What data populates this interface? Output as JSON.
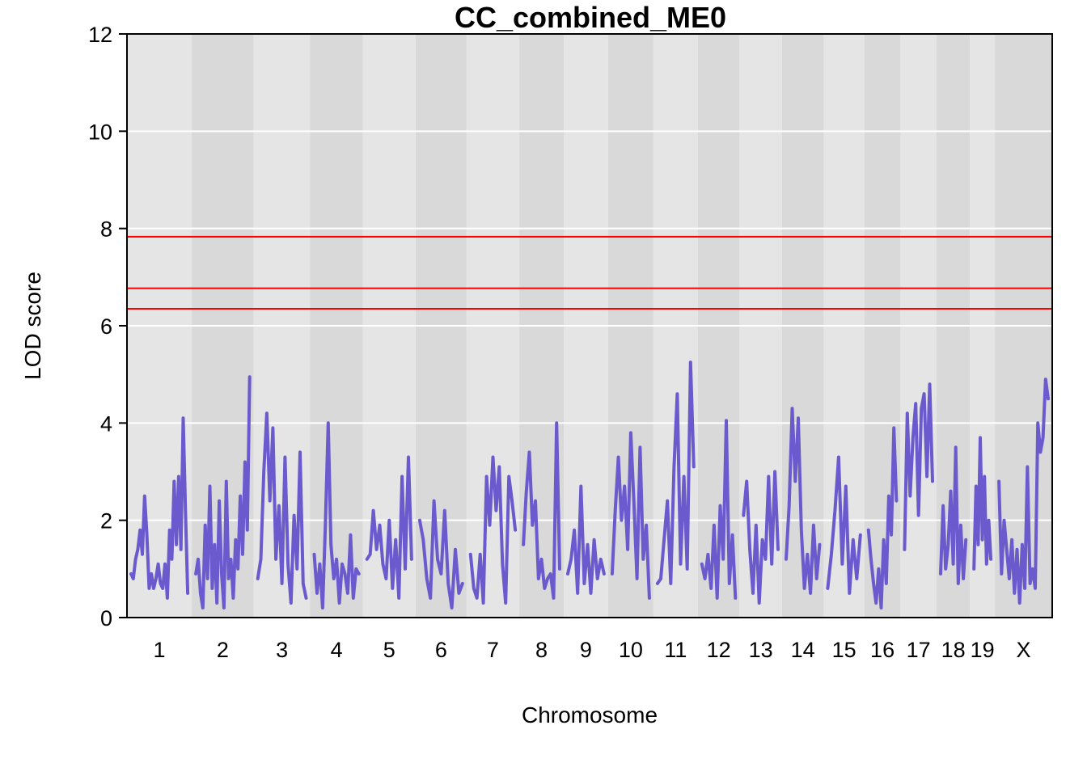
{
  "chart_data": {
    "type": "line",
    "title": "CC_combined_ME0",
    "xlabel": "Chromosome",
    "ylabel": "LOD score",
    "ylim": [
      0,
      12
    ],
    "yticks": [
      0,
      2,
      4,
      6,
      8,
      10,
      12
    ],
    "grid": true,
    "colors": {
      "line": "#6a5acd",
      "threshold": "#ff0000",
      "band_light": "#e5e5e5",
      "band_dark": "#d9d9d9",
      "grid": "#ffffff"
    },
    "thresholds": [
      7.83,
      6.77,
      6.35
    ],
    "chromosomes": [
      {
        "label": "1",
        "start": 0.0,
        "end": 0.07,
        "values": [
          0.9,
          0.8,
          1.2,
          1.4,
          1.8,
          1.3,
          2.5,
          1.7,
          0.6,
          0.9,
          0.6,
          0.8,
          1.1,
          0.7,
          0.6,
          1.1,
          0.4,
          1.8,
          1.2,
          2.8,
          1.5,
          2.9,
          1.4,
          4.1,
          2.2,
          0.5
        ]
      },
      {
        "label": "2",
        "start": 0.07,
        "end": 0.137,
        "values": [
          0.9,
          1.2,
          0.5,
          0.2,
          1.9,
          0.8,
          2.7,
          0.6,
          1.5,
          0.3,
          2.4,
          0.9,
          0.2,
          2.8,
          0.8,
          1.2,
          0.4,
          1.6,
          1.0,
          2.5,
          1.3,
          3.2,
          1.8,
          4.95
        ]
      },
      {
        "label": "3",
        "start": 0.137,
        "end": 0.198,
        "values": [
          0.8,
          1.2,
          3.0,
          4.2,
          2.4,
          3.9,
          1.2,
          2.3,
          0.7,
          3.3,
          1.1,
          0.3,
          2.1,
          1.0,
          3.4,
          0.7,
          0.4
        ]
      },
      {
        "label": "4",
        "start": 0.198,
        "end": 0.255,
        "values": [
          1.3,
          0.5,
          1.1,
          0.2,
          1.9,
          4.0,
          1.5,
          0.8,
          1.2,
          0.3,
          1.1,
          0.9,
          0.5,
          1.7,
          0.4,
          1.0,
          0.9
        ]
      },
      {
        "label": "5",
        "start": 0.255,
        "end": 0.312,
        "values": [
          1.2,
          1.3,
          2.2,
          1.4,
          1.9,
          1.1,
          0.8,
          2.0,
          0.6,
          1.6,
          0.4,
          2.9,
          1.0,
          3.3,
          1.2
        ]
      },
      {
        "label": "6",
        "start": 0.312,
        "end": 0.367,
        "values": [
          2.0,
          1.6,
          0.8,
          0.4,
          2.4,
          1.2,
          0.9,
          2.2,
          0.7,
          0.2,
          1.4,
          0.5,
          0.7
        ]
      },
      {
        "label": "7",
        "start": 0.367,
        "end": 0.424,
        "values": [
          1.3,
          0.6,
          0.4,
          1.3,
          0.3,
          2.9,
          1.9,
          3.3,
          2.2,
          3.1,
          1.1,
          0.3,
          2.9,
          2.4,
          1.8
        ]
      },
      {
        "label": "8",
        "start": 0.424,
        "end": 0.472,
        "values": [
          1.5,
          2.6,
          3.4,
          1.9,
          2.4,
          0.8,
          1.2,
          0.6,
          0.8,
          0.9,
          0.4,
          4.0,
          1.0
        ]
      },
      {
        "label": "9",
        "start": 0.472,
        "end": 0.52,
        "values": [
          0.9,
          1.2,
          1.8,
          0.5,
          2.7,
          0.7,
          1.5,
          0.5,
          1.6,
          0.8,
          1.2,
          0.9
        ]
      },
      {
        "label": "10",
        "start": 0.52,
        "end": 0.569,
        "values": [
          0.9,
          2.2,
          3.3,
          2.0,
          2.7,
          1.4,
          3.8,
          2.4,
          0.8,
          3.5,
          1.2,
          1.9,
          0.4
        ]
      },
      {
        "label": "11",
        "start": 0.569,
        "end": 0.617,
        "values": [
          0.7,
          0.8,
          1.6,
          2.4,
          0.7,
          3.1,
          4.6,
          1.1,
          2.9,
          1.0,
          5.25,
          3.1
        ]
      },
      {
        "label": "12",
        "start": 0.617,
        "end": 0.662,
        "values": [
          1.1,
          0.8,
          1.3,
          0.6,
          1.9,
          0.4,
          2.3,
          1.2,
          4.05,
          0.7,
          1.7,
          0.4
        ]
      },
      {
        "label": "13",
        "start": 0.662,
        "end": 0.708,
        "values": [
          2.1,
          2.8,
          1.4,
          0.5,
          1.9,
          0.3,
          1.6,
          1.2,
          2.9,
          1.1,
          3.0,
          1.4
        ]
      },
      {
        "label": "14",
        "start": 0.708,
        "end": 0.753,
        "values": [
          1.2,
          2.3,
          4.3,
          2.8,
          4.1,
          1.8,
          0.6,
          1.3,
          0.5,
          1.9,
          0.8,
          1.5
        ]
      },
      {
        "label": "15",
        "start": 0.753,
        "end": 0.797,
        "values": [
          0.6,
          1.3,
          2.2,
          3.3,
          1.1,
          2.7,
          0.5,
          1.6,
          0.8,
          1.7
        ]
      },
      {
        "label": "16",
        "start": 0.797,
        "end": 0.836,
        "values": [
          1.8,
          1.2,
          0.7,
          0.3,
          1.0,
          0.2,
          1.6,
          0.7,
          2.5,
          1.7,
          3.9,
          2.4
        ]
      },
      {
        "label": "17",
        "start": 0.836,
        "end": 0.875,
        "values": [
          1.4,
          4.2,
          2.5,
          3.7,
          4.4,
          2.1,
          4.3,
          4.6,
          2.9,
          4.8,
          2.8
        ]
      },
      {
        "label": "18",
        "start": 0.875,
        "end": 0.911,
        "values": [
          0.9,
          2.3,
          1.0,
          1.5,
          2.6,
          1.1,
          3.5,
          0.7,
          1.9,
          0.8,
          1.6
        ]
      },
      {
        "label": "19",
        "start": 0.911,
        "end": 0.938,
        "values": [
          1.0,
          2.7,
          1.5,
          3.7,
          1.6,
          2.9,
          1.1,
          2.0,
          1.2
        ]
      },
      {
        "label": "X",
        "start": 0.938,
        "end": 1.0,
        "values": [
          2.8,
          0.9,
          2.0,
          1.4,
          0.8,
          1.6,
          0.5,
          1.4,
          0.3,
          1.5,
          0.6,
          3.1,
          0.7,
          1.0,
          0.6,
          4.0,
          3.4,
          3.7,
          4.9,
          4.5
        ]
      }
    ]
  }
}
